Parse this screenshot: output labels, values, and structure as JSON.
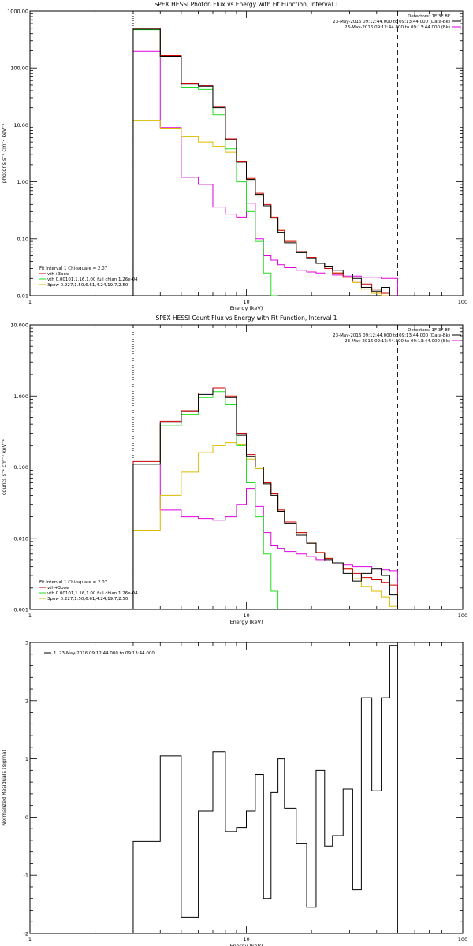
{
  "chart_data": [
    {
      "type": "line",
      "title": "SPEX HESSI Photon Flux vs Energy with Fit Function, Interval 1",
      "xlabel": "Energy (keV)",
      "ylabel": "photons s⁻¹ cm⁻² keV⁻¹",
      "xscale": "log",
      "yscale": "log",
      "xlim": [
        1,
        100
      ],
      "ylim": [
        0.01,
        1000
      ],
      "x_ticks": [
        "1",
        "10",
        "100"
      ],
      "y_ticks": [
        "0.01",
        "0.10",
        "1.00",
        "10.00",
        "100.00",
        "1000.00"
      ],
      "legend_top": [
        "Detectors: 1F 3F 8F",
        "23-May-2016 09:12:44.000 to 09:13:44.000 (Data-Bk)",
        "23-May-2016 09:12:44.000 to 09:13:44.000 (Bk)"
      ],
      "legend_bottom": [
        "Fit Interval 1   Chi-square = 2.07",
        "vth+3pow",
        "vth 0.00101,1.16,1.00  full chian 1.26e-04",
        "3pow 0.227,1.50,6.61,4.24,19.7,2.50"
      ],
      "edges": [
        3,
        4,
        5,
        6,
        7,
        8,
        9,
        10,
        11,
        12,
        13,
        14,
        15,
        17,
        19,
        21,
        23,
        25,
        28,
        31,
        34,
        38,
        42,
        46,
        50
      ],
      "vlines": [
        {
          "x": 3,
          "style": "dotted"
        },
        {
          "x": 50,
          "style": "dashed"
        }
      ],
      "series": [
        {
          "name": "23-May-2016 09:12:44.000 to 09:13:44.000 (Data-Bk)",
          "color": "#000000",
          "values": [
            480,
            160,
            52,
            48,
            20,
            5.5,
            2.2,
            1.1,
            0.6,
            0.38,
            0.23,
            0.13,
            0.085,
            0.057,
            0.045,
            0.037,
            0.032,
            0.028,
            0.024,
            0.02,
            0.014,
            0.012,
            0.014,
            0.0085
          ]
        },
        {
          "name": "vth+3pow",
          "color": "#cc0000",
          "values": [
            500,
            165,
            54,
            49,
            21,
            5.7,
            2.3,
            1.15,
            0.63,
            0.4,
            0.24,
            0.14,
            0.09,
            0.06,
            0.047,
            0.037,
            0.03,
            0.025,
            0.021,
            0.018,
            0.016,
            0.013,
            0.011,
            0.0095
          ]
        },
        {
          "name": "vth",
          "color": "#22dd22",
          "values": [
            470,
            150,
            46,
            42,
            15,
            3.8,
            1.0,
            0.3,
            0.09,
            0.025,
            0.01
          ]
        },
        {
          "name": "3pow",
          "color": "#ddbb00",
          "values": [
            12,
            8.5,
            6.2,
            5.0,
            4.2,
            3.3,
            2.2,
            1.1,
            0.6,
            0.38,
            0.23,
            0.14,
            0.09,
            0.06,
            0.047,
            0.037,
            0.03,
            0.025,
            0.021,
            0.017,
            0.013,
            0.011,
            0.009,
            0.0075
          ]
        },
        {
          "name": "23-May-2016 09:12:44.000 to 09:13:44.000 (Bk)",
          "color": "#dd00dd",
          "values": [
            195,
            9.0,
            1.2,
            0.9,
            0.36,
            0.27,
            0.24,
            0.42,
            0.1,
            0.05,
            0.042,
            0.035,
            0.031,
            0.028,
            0.026,
            0.025,
            0.024,
            0.023,
            0.022,
            0.022,
            0.021,
            0.021,
            0.02,
            0.02
          ]
        }
      ]
    },
    {
      "type": "line",
      "title": "SPEX HESSI Count Flux vs Energy with Fit Function, Interval 1",
      "xlabel": "Energy (keV)",
      "ylabel": "counts s⁻¹ cm⁻² keV⁻¹",
      "xscale": "log",
      "yscale": "log",
      "xlim": [
        1,
        100
      ],
      "ylim": [
        0.001,
        10
      ],
      "x_ticks": [
        "1",
        "10",
        "100"
      ],
      "y_ticks": [
        "0.001",
        "0.010",
        "0.100",
        "1.000",
        "10.000"
      ],
      "legend_top": [
        "Detectors: 1F 3F 8F",
        "23-May-2016 09:12:44.000 to 09:13:44.000 (Data-Bk)",
        "23-May-2016 09:12:44.000 to 09:13:44.000 (Bk)"
      ],
      "legend_bottom": [
        "Fit Interval 1   Chi-square = 2.07",
        "vth+3pow",
        "vth 0.00101,1.16,1.00  full chian 1.26e-04",
        "3pow 0.227,1.50,6.61,4.24,19.7,2.50"
      ],
      "edges": [
        3,
        4,
        5,
        6,
        7,
        8,
        9,
        10,
        11,
        12,
        13,
        14,
        15,
        17,
        19,
        21,
        23,
        25,
        28,
        31,
        34,
        38,
        42,
        46,
        50
      ],
      "vlines": [
        {
          "x": 3,
          "style": "dotted"
        },
        {
          "x": 50,
          "style": "dashed"
        }
      ],
      "series": [
        {
          "name": "23-May-2016 09:12:44.000 to 09:13:44.000 (Data-Bk)",
          "color": "#000000",
          "values": [
            0.11,
            0.42,
            0.6,
            1.05,
            1.25,
            0.95,
            0.28,
            0.14,
            0.1,
            0.058,
            0.04,
            0.024,
            0.016,
            0.011,
            0.0085,
            0.0062,
            0.005,
            0.0045,
            0.0032,
            0.0025,
            0.0032,
            0.0037,
            0.003,
            0.0016
          ]
        },
        {
          "name": "vth+3pow",
          "color": "#cc0000",
          "values": [
            0.12,
            0.44,
            0.62,
            1.1,
            1.3,
            1.0,
            0.3,
            0.15,
            0.1,
            0.06,
            0.042,
            0.025,
            0.017,
            0.012,
            0.0085,
            0.0063,
            0.0052,
            0.0045,
            0.0037,
            0.0032,
            0.0028,
            0.0026,
            0.0024,
            0.0022
          ]
        },
        {
          "name": "vth",
          "color": "#22dd22",
          "values": [
            0.11,
            0.38,
            0.55,
            0.95,
            1.15,
            0.75,
            0.2,
            0.06,
            0.02,
            0.006,
            0.0018,
            0.0009
          ]
        },
        {
          "name": "3pow",
          "color": "#ddbb00",
          "values": [
            0.013,
            0.04,
            0.085,
            0.16,
            0.2,
            0.22,
            0.21,
            0.13,
            0.095,
            0.06,
            0.042,
            0.025,
            0.017,
            0.012,
            0.0085,
            0.0063,
            0.0052,
            0.0045,
            0.0037,
            0.0027,
            0.0021,
            0.0018,
            0.0015,
            0.0011
          ]
        },
        {
          "name": "23-May-2016 09:12:44.000 to 09:13:44.000 (Bk)",
          "color": "#dd00dd",
          "values": [
            0.11,
            0.025,
            0.02,
            0.019,
            0.018,
            0.02,
            0.03,
            0.05,
            0.028,
            0.012,
            0.008,
            0.0072,
            0.0065,
            0.006,
            0.0055,
            0.005,
            0.0048,
            0.0045,
            0.0042,
            0.004,
            0.004,
            0.0038,
            0.0036,
            0.0035
          ]
        }
      ]
    },
    {
      "type": "line",
      "title": "",
      "xlabel": "Energy (keV)",
      "ylabel": "Normalized Residuals (sigma)",
      "xscale": "log",
      "yscale": "linear",
      "xlim": [
        1,
        100
      ],
      "ylim": [
        -2,
        3
      ],
      "x_ticks": [
        "1",
        "10",
        "100"
      ],
      "y_ticks": [
        "-2",
        "-1",
        "0",
        "1",
        "2",
        "3"
      ],
      "legend": "1. 23-May-2016 09:12:44.000 to 09:13:44.000",
      "edges": [
        3,
        4,
        5,
        6,
        7,
        8,
        9,
        10,
        11,
        12,
        13,
        14,
        15,
        17,
        19,
        21,
        23,
        25,
        28,
        31,
        34,
        38,
        42,
        46,
        50
      ],
      "series": [
        {
          "name": "1. 23-May-2016 09:12:44.000 to 09:13:44.000",
          "color": "#000000",
          "values": [
            -0.42,
            1.05,
            -1.72,
            0.1,
            1.12,
            -0.25,
            -0.18,
            0.1,
            0.73,
            -1.4,
            0.42,
            1.0,
            0.15,
            -0.45,
            -1.55,
            0.8,
            -0.5,
            -0.32,
            0.48,
            -1.25,
            2.05,
            0.45,
            2.05,
            2.95
          ]
        }
      ]
    }
  ]
}
